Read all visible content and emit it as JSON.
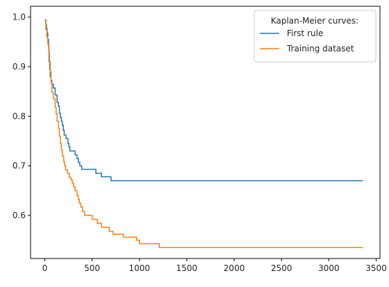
{
  "chart_data": {
    "type": "line",
    "step": true,
    "title": "",
    "xlabel": "",
    "ylabel": "",
    "xlim": [
      -150,
      3540
    ],
    "ylim": [
      0.513,
      1.022
    ],
    "x_ticks": [
      0,
      500,
      1000,
      1500,
      2000,
      2500,
      3000,
      3500
    ],
    "x_tick_labels": [
      "0",
      "500",
      "1000",
      "1500",
      "2000",
      "2500",
      "3000",
      "3500"
    ],
    "y_ticks": [
      0.6,
      0.7,
      0.8,
      0.9,
      1.0
    ],
    "y_tick_labels": [
      "0.6",
      "0.7",
      "0.8",
      "0.9",
      "1.0"
    ],
    "grid": false,
    "legend": {
      "title": "Kaplan-Meier curves:",
      "placement": "top-right"
    },
    "series": [
      {
        "name": "First rule",
        "color": "#1f77b4",
        "points": [
          [
            0,
            0.993
          ],
          [
            10,
            0.985
          ],
          [
            18,
            0.977
          ],
          [
            25,
            0.968
          ],
          [
            32,
            0.955
          ],
          [
            40,
            0.94
          ],
          [
            45,
            0.91
          ],
          [
            52,
            0.894
          ],
          [
            58,
            0.88
          ],
          [
            65,
            0.872
          ],
          [
            75,
            0.865
          ],
          [
            90,
            0.857
          ],
          [
            110,
            0.843
          ],
          [
            130,
            0.828
          ],
          [
            145,
            0.82
          ],
          [
            155,
            0.806
          ],
          [
            165,
            0.798
          ],
          [
            175,
            0.79
          ],
          [
            185,
            0.782
          ],
          [
            195,
            0.772
          ],
          [
            205,
            0.762
          ],
          [
            225,
            0.755
          ],
          [
            245,
            0.745
          ],
          [
            255,
            0.738
          ],
          [
            265,
            0.73
          ],
          [
            320,
            0.722
          ],
          [
            340,
            0.715
          ],
          [
            355,
            0.707
          ],
          [
            370,
            0.7
          ],
          [
            390,
            0.693
          ],
          [
            540,
            0.685
          ],
          [
            600,
            0.678
          ],
          [
            700,
            0.67
          ],
          [
            3360,
            0.67
          ]
        ]
      },
      {
        "name": "Training dataset",
        "color": "#ff7f0e",
        "points": [
          [
            0,
            0.995
          ],
          [
            12,
            0.975
          ],
          [
            22,
            0.96
          ],
          [
            32,
            0.945
          ],
          [
            42,
            0.928
          ],
          [
            50,
            0.91
          ],
          [
            58,
            0.89
          ],
          [
            66,
            0.868
          ],
          [
            75,
            0.848
          ],
          [
            90,
            0.835
          ],
          [
            110,
            0.818
          ],
          [
            120,
            0.805
          ],
          [
            130,
            0.79
          ],
          [
            145,
            0.775
          ],
          [
            155,
            0.76
          ],
          [
            165,
            0.745
          ],
          [
            175,
            0.732
          ],
          [
            185,
            0.72
          ],
          [
            200,
            0.708
          ],
          [
            210,
            0.7
          ],
          [
            220,
            0.692
          ],
          [
            240,
            0.685
          ],
          [
            260,
            0.677
          ],
          [
            275,
            0.672
          ],
          [
            290,
            0.665
          ],
          [
            305,
            0.657
          ],
          [
            320,
            0.65
          ],
          [
            340,
            0.64
          ],
          [
            355,
            0.632
          ],
          [
            365,
            0.625
          ],
          [
            380,
            0.617
          ],
          [
            400,
            0.608
          ],
          [
            420,
            0.6
          ],
          [
            500,
            0.592
          ],
          [
            555,
            0.584
          ],
          [
            600,
            0.576
          ],
          [
            680,
            0.568
          ],
          [
            720,
            0.562
          ],
          [
            830,
            0.556
          ],
          [
            970,
            0.55
          ],
          [
            1000,
            0.543
          ],
          [
            1210,
            0.535
          ],
          [
            3360,
            0.535
          ]
        ]
      }
    ]
  }
}
